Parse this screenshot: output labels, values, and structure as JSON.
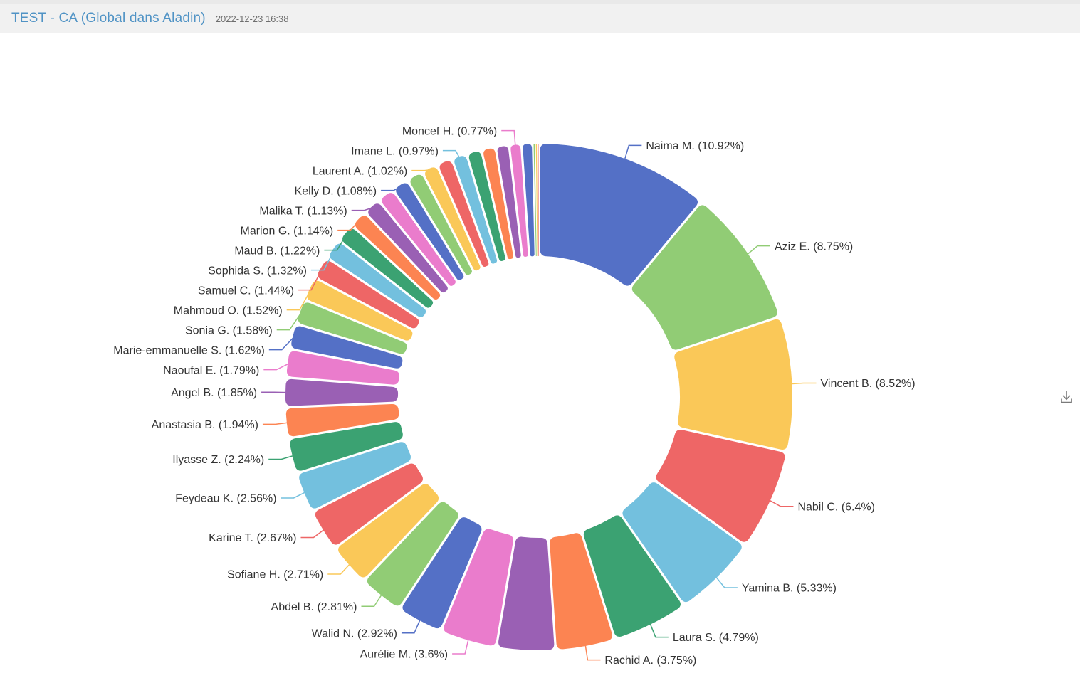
{
  "header": {
    "title": "TEST - CA (Global dans Aladin)",
    "timestamp": "2022-12-23 16:38"
  },
  "toolbar": {
    "icons": {
      "download": "download-icon"
    }
  },
  "colors": {
    "title": "#5093c5",
    "timestamp": "#6e6e6e",
    "label_text": "#333333",
    "header_bg": "#f1f1f1",
    "icon_gray": "#7a7a7a"
  },
  "chart_data": {
    "type": "pie",
    "variant": "donut",
    "unit": "%",
    "label_format": "{name} ({value}%)",
    "palette": [
      "#5470c6",
      "#91cc75",
      "#fac858",
      "#ee6666",
      "#73c0de",
      "#3ba272",
      "#fc8452",
      "#9a60b4",
      "#ea7ccc"
    ],
    "layout_hints": {
      "start_angle_deg": 0,
      "clockwise": true,
      "inner_radius_ratio": 0.556,
      "rounded_corners": true,
      "label_lines": true,
      "legend": "none"
    },
    "segments": [
      {
        "name": "Naima M.",
        "value": 10.92,
        "label_visible": true
      },
      {
        "name": "Aziz E.",
        "value": 8.75,
        "label_visible": true
      },
      {
        "name": "Vincent B.",
        "value": 8.52,
        "label_visible": true
      },
      {
        "name": "Nabil C.",
        "value": 6.4,
        "label_visible": true
      },
      {
        "name": "Yamina B.",
        "value": 5.33,
        "label_visible": true
      },
      {
        "name": "Laura S.",
        "value": 4.79,
        "label_visible": true
      },
      {
        "name": "Rachid A.",
        "value": 3.75,
        "label_visible": true
      },
      {
        "name": "",
        "value": 3.7,
        "label_visible": false
      },
      {
        "name": "Aurélie M.",
        "value": 3.6,
        "label_visible": true
      },
      {
        "name": "Walid N.",
        "value": 2.92,
        "label_visible": true
      },
      {
        "name": "Abdel B.",
        "value": 2.81,
        "label_visible": true
      },
      {
        "name": "Sofiane H.",
        "value": 2.71,
        "label_visible": true
      },
      {
        "name": "Karine T.",
        "value": 2.67,
        "label_visible": true
      },
      {
        "name": "Feydeau K.",
        "value": 2.56,
        "label_visible": true
      },
      {
        "name": "Ilyasse Z.",
        "value": 2.24,
        "label_visible": true
      },
      {
        "name": "Anastasia B.",
        "value": 1.94,
        "label_visible": true
      },
      {
        "name": "Angel B.",
        "value": 1.85,
        "label_visible": true
      },
      {
        "name": "Naoufal E.",
        "value": 1.79,
        "label_visible": true
      },
      {
        "name": "Marie-emmanuelle S.",
        "value": 1.62,
        "label_visible": true
      },
      {
        "name": "Sonia G.",
        "value": 1.58,
        "label_visible": true
      },
      {
        "name": "Mahmoud O.",
        "value": 1.52,
        "label_visible": true
      },
      {
        "name": "Samuel C.",
        "value": 1.44,
        "label_visible": true
      },
      {
        "name": "Sophida S.",
        "value": 1.32,
        "label_visible": true
      },
      {
        "name": "Maud B.",
        "value": 1.22,
        "label_visible": true
      },
      {
        "name": "Marion G.",
        "value": 1.14,
        "label_visible": true
      },
      {
        "name": "Malika T.",
        "value": 1.13,
        "label_visible": true
      },
      {
        "name": "",
        "value": 1.1,
        "label_visible": false
      },
      {
        "name": "Kelly D.",
        "value": 1.08,
        "label_visible": true
      },
      {
        "name": "",
        "value": 1.05,
        "label_visible": false
      },
      {
        "name": "Laurent A.",
        "value": 1.02,
        "label_visible": true
      },
      {
        "name": "",
        "value": 1.0,
        "label_visible": false
      },
      {
        "name": "Imane L.",
        "value": 0.97,
        "label_visible": true
      },
      {
        "name": "",
        "value": 0.95,
        "label_visible": false
      },
      {
        "name": "",
        "value": 0.9,
        "label_visible": false
      },
      {
        "name": "",
        "value": 0.85,
        "label_visible": false
      },
      {
        "name": "Moncef H.",
        "value": 0.77,
        "label_visible": true
      },
      {
        "name": "",
        "value": 0.72,
        "label_visible": false
      },
      {
        "name": "",
        "value": 0.15,
        "label_visible": false
      },
      {
        "name": "",
        "value": 0.12,
        "label_visible": false
      },
      {
        "name": "",
        "value": 0.1,
        "label_visible": false
      }
    ]
  }
}
